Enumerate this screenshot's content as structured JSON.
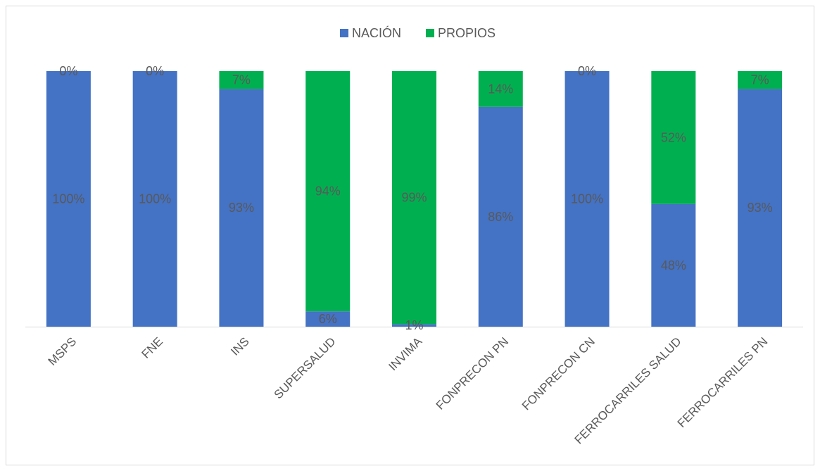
{
  "chart_data": {
    "type": "bar",
    "stacked": true,
    "percent_stacked": true,
    "categories": [
      "MSPS",
      "FNE",
      "INS",
      "SUPERSALUD",
      "INVIMA",
      "FONPRECON PN",
      "FONPRECON CN",
      "FERROCARRILES SALUD",
      "FERROCARRILES PN"
    ],
    "series": [
      {
        "name": "NACIÓN",
        "color": "#4472C4",
        "values": [
          100,
          100,
          93,
          6,
          1,
          86,
          100,
          48,
          93
        ],
        "labels": [
          "100%",
          "100%",
          "93%",
          "6%",
          "1%",
          "86%",
          "100%",
          "48%",
          "93%"
        ]
      },
      {
        "name": "PROPIOS",
        "color": "#00B050",
        "values": [
          0,
          0,
          7,
          94,
          99,
          14,
          0,
          52,
          7
        ],
        "labels": [
          "0%",
          "0%",
          "7%",
          "94%",
          "99%",
          "14%",
          "0%",
          "52%",
          "7%"
        ]
      }
    ],
    "ylim": [
      0,
      100
    ],
    "grid": false,
    "legend_position": "top"
  }
}
